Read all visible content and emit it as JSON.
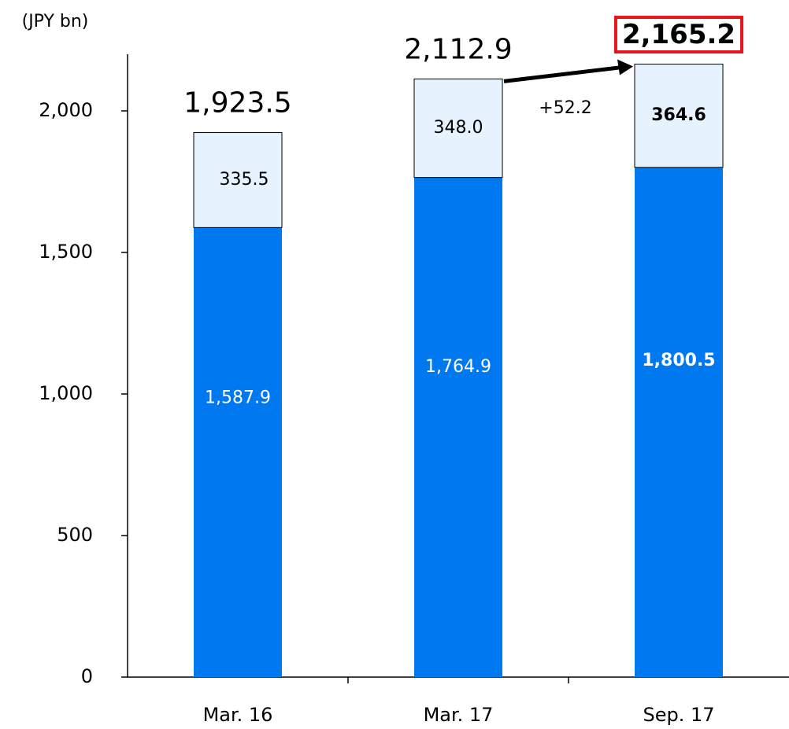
{
  "chart_data": {
    "type": "stacked_bar",
    "y_label": "(JPY bn)",
    "categories": [
      "Mar. 16",
      "Mar. 17",
      "Sep. 17"
    ],
    "series": [
      {
        "color": "#0078f0",
        "values": [
          1587.9,
          1764.9,
          1800.5
        ],
        "value_labels": [
          "1,587.9",
          "1,764.9",
          "1,800.5"
        ]
      },
      {
        "color": "#e6f2fd",
        "values": [
          335.5,
          348.0,
          364.6
        ],
        "value_labels": [
          "335.5",
          "348.0",
          "364.6"
        ]
      }
    ],
    "totals": {
      "values": [
        1923.5,
        2112.9,
        2165.2
      ],
      "value_labels": [
        "1,923.5",
        "2,112.9",
        "2,165.2"
      ]
    },
    "annotation": "+52.2",
    "ylim": [
      0,
      2200
    ],
    "yticks": [
      0,
      500,
      {
        "value": 1000,
        "label": "1,000"
      },
      {
        "value": 1500,
        "label": "1,500"
      },
      {
        "value": 2000,
        "label": "2,000"
      }
    ],
    "highlight_color": "#e8141c"
  }
}
